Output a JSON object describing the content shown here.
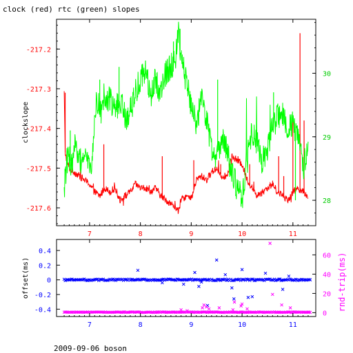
{
  "title": "clock (red) rtc (green) slopes",
  "footer": "2009-09-06 boson",
  "colors": {
    "clock": "#ff0000",
    "rtc": "#00ff00",
    "offset": "#0000ff",
    "rndtrip": "#ff00ff",
    "axis": "#000000",
    "left_ticks_top": "#ff0000",
    "right_ticks_top": "#00cc00",
    "ticks_bottom_x": "#0000ff",
    "left_ticks_bottom": "#0000ff",
    "right_ticks_bottom": "#ff00ff"
  },
  "chart_data": [
    {
      "type": "line",
      "title": "clock (red) rtc (green) slopes",
      "ylabel": "clockslope",
      "xlim": [
        6.35,
        11.45
      ],
      "x_ticks": [
        7,
        8,
        9,
        10,
        11
      ],
      "x_tick_labels": [
        "7",
        "8",
        "9",
        "10",
        "11"
      ],
      "ylim_left": [
        -217.645,
        -217.125
      ],
      "y_left_ticks": [
        -217.6,
        -217.5,
        -217.4,
        -217.3,
        -217.2
      ],
      "y_left_tick_labels": [
        "-217.6",
        "-217.5",
        "-217.4",
        "-217.3",
        "-217.2"
      ],
      "ylim_right": [
        27.6,
        30.85
      ],
      "y_right_ticks": [
        28,
        29,
        30
      ],
      "y_right_tick_labels": [
        "28",
        "29",
        "30"
      ],
      "grid": false,
      "series": [
        {
          "name": "clock",
          "axis": "left",
          "color": "#ff0000",
          "x": [
            6.5,
            6.52,
            6.55,
            6.6,
            6.7,
            6.8,
            6.9,
            7.0,
            7.1,
            7.2,
            7.3,
            7.4,
            7.5,
            7.6,
            7.7,
            7.8,
            7.9,
            8.0,
            8.1,
            8.2,
            8.3,
            8.4,
            8.5,
            8.6,
            8.7,
            8.75,
            8.8,
            8.9,
            9.0,
            9.1,
            9.2,
            9.3,
            9.4,
            9.5,
            9.6,
            9.7,
            9.8,
            9.9,
            10.0,
            10.1,
            10.2,
            10.3,
            10.4,
            10.5,
            10.6,
            10.7,
            10.8,
            10.9,
            11.0,
            11.1,
            11.2,
            11.3
          ],
          "values": [
            -217.31,
            -217.46,
            -217.48,
            -217.5,
            -217.51,
            -217.52,
            -217.53,
            -217.54,
            -217.56,
            -217.57,
            -217.55,
            -217.56,
            -217.55,
            -217.58,
            -217.57,
            -217.56,
            -217.54,
            -217.55,
            -217.55,
            -217.56,
            -217.55,
            -217.57,
            -217.58,
            -217.59,
            -217.6,
            -217.61,
            -217.58,
            -217.57,
            -217.58,
            -217.53,
            -217.52,
            -217.53,
            -217.51,
            -217.5,
            -217.52,
            -217.52,
            -217.47,
            -217.48,
            -217.49,
            -217.53,
            -217.55,
            -217.57,
            -217.56,
            -217.55,
            -217.54,
            -217.56,
            -217.57,
            -217.58,
            -217.56,
            -217.55,
            -217.56,
            -217.57
          ],
          "spikes": [
            {
              "x": 6.52,
              "value": -217.31
            },
            {
              "x": 7.28,
              "value": -217.44
            },
            {
              "x": 8.43,
              "value": -217.47
            },
            {
              "x": 9.05,
              "value": -217.48
            },
            {
              "x": 9.58,
              "value": -217.49
            },
            {
              "x": 9.92,
              "value": -217.47
            },
            {
              "x": 10.15,
              "value": -217.49
            },
            {
              "x": 10.72,
              "value": -217.47
            },
            {
              "x": 10.82,
              "value": -217.52
            },
            {
              "x": 11.0,
              "value": -217.38
            },
            {
              "x": 11.14,
              "value": -217.16
            },
            {
              "x": 11.22,
              "value": -217.38
            }
          ]
        },
        {
          "name": "rtc",
          "axis": "right",
          "color": "#00ff00",
          "x": [
            6.5,
            6.55,
            6.6,
            6.65,
            6.7,
            6.8,
            6.9,
            7.0,
            7.05,
            7.1,
            7.15,
            7.2,
            7.3,
            7.4,
            7.5,
            7.6,
            7.7,
            7.8,
            7.9,
            8.0,
            8.1,
            8.2,
            8.3,
            8.4,
            8.5,
            8.6,
            8.7,
            8.75,
            8.8,
            8.9,
            9.0,
            9.1,
            9.2,
            9.3,
            9.4,
            9.5,
            9.6,
            9.7,
            9.8,
            9.9,
            10.0,
            10.1,
            10.2,
            10.3,
            10.4,
            10.5,
            10.6,
            10.7,
            10.8,
            10.9,
            11.0,
            11.1,
            11.2,
            11.3
          ],
          "values": [
            28.2,
            28.6,
            28.7,
            28.5,
            28.9,
            28.6,
            28.7,
            28.5,
            28.6,
            29.3,
            29.6,
            29.4,
            29.5,
            29.6,
            29.4,
            29.6,
            29.3,
            29.4,
            29.7,
            29.9,
            30.1,
            29.6,
            29.9,
            29.7,
            30.0,
            30.1,
            30.3,
            30.6,
            30.2,
            29.9,
            29.5,
            29.2,
            29.6,
            29.3,
            28.8,
            28.7,
            29.0,
            28.8,
            28.4,
            28.2,
            28.0,
            28.7,
            29.1,
            28.9,
            28.6,
            28.8,
            29.2,
            29.3,
            29.4,
            29.1,
            29.2,
            29.0,
            28.5,
            28.9
          ],
          "spikes": [
            {
              "x": 6.62,
              "value": 29.1
            },
            {
              "x": 7.2,
              "value": 29.9
            },
            {
              "x": 7.58,
              "value": 30.1
            },
            {
              "x": 8.1,
              "value": 30.2
            },
            {
              "x": 8.65,
              "value": 30.5
            },
            {
              "x": 8.78,
              "value": 30.7
            },
            {
              "x": 9.52,
              "value": 29.9
            },
            {
              "x": 9.98,
              "value": 27.9
            },
            {
              "x": 10.62,
              "value": 29.7
            },
            {
              "x": 11.05,
              "value": 28.0
            }
          ]
        }
      ]
    },
    {
      "type": "scatter",
      "ylabel": "offset(ms)",
      "y2label": "rnd-trip(ms)",
      "xlim": [
        6.35,
        11.45
      ],
      "x_ticks": [
        7,
        8,
        9,
        10,
        11
      ],
      "x_tick_labels": [
        "7",
        "8",
        "9",
        "10",
        "11"
      ],
      "ylim_left": [
        -0.5,
        0.55
      ],
      "y_left_ticks": [
        -0.4,
        -0.2,
        0,
        0.2,
        0.4
      ],
      "y_left_tick_labels": [
        "-0.4",
        "-0.2",
        "0",
        "0.2",
        "0.4"
      ],
      "ylim_right": [
        -4,
        76
      ],
      "y_right_ticks": [
        0,
        20,
        40,
        60
      ],
      "y_right_tick_labels": [
        "0",
        "20",
        "40",
        "60"
      ],
      "grid": false,
      "series": [
        {
          "name": "offset",
          "axis": "left",
          "color": "#0000ff",
          "marker": "x",
          "baseline": {
            "x_start": 6.5,
            "x_end": 11.35,
            "value": 0
          },
          "x": [
            7.95,
            8.43,
            8.85,
            9.07,
            9.15,
            9.2,
            9.32,
            9.5,
            9.67,
            9.8,
            9.84,
            10.0,
            10.12,
            10.2,
            10.46,
            10.8,
            10.92
          ],
          "values": [
            0.13,
            -0.04,
            -0.06,
            0.1,
            -0.09,
            -0.03,
            -0.35,
            0.27,
            0.07,
            -0.11,
            -0.26,
            0.14,
            -0.24,
            -0.23,
            0.09,
            -0.13,
            0.05
          ]
        },
        {
          "name": "rnd-trip",
          "axis": "right",
          "color": "#ff00ff",
          "marker": "x",
          "baseline": {
            "x_start": 6.5,
            "x_end": 11.35,
            "value": 0.5
          },
          "x": [
            8.8,
            8.92,
            9.22,
            9.25,
            9.3,
            9.35,
            9.55,
            9.82,
            9.85,
            9.98,
            10.0,
            10.1,
            10.55,
            10.6,
            10.78,
            10.95
          ],
          "values": [
            3,
            2,
            5,
            8,
            6,
            4,
            5,
            3,
            11,
            7,
            9,
            4,
            72,
            19,
            8,
            5
          ]
        }
      ]
    }
  ]
}
